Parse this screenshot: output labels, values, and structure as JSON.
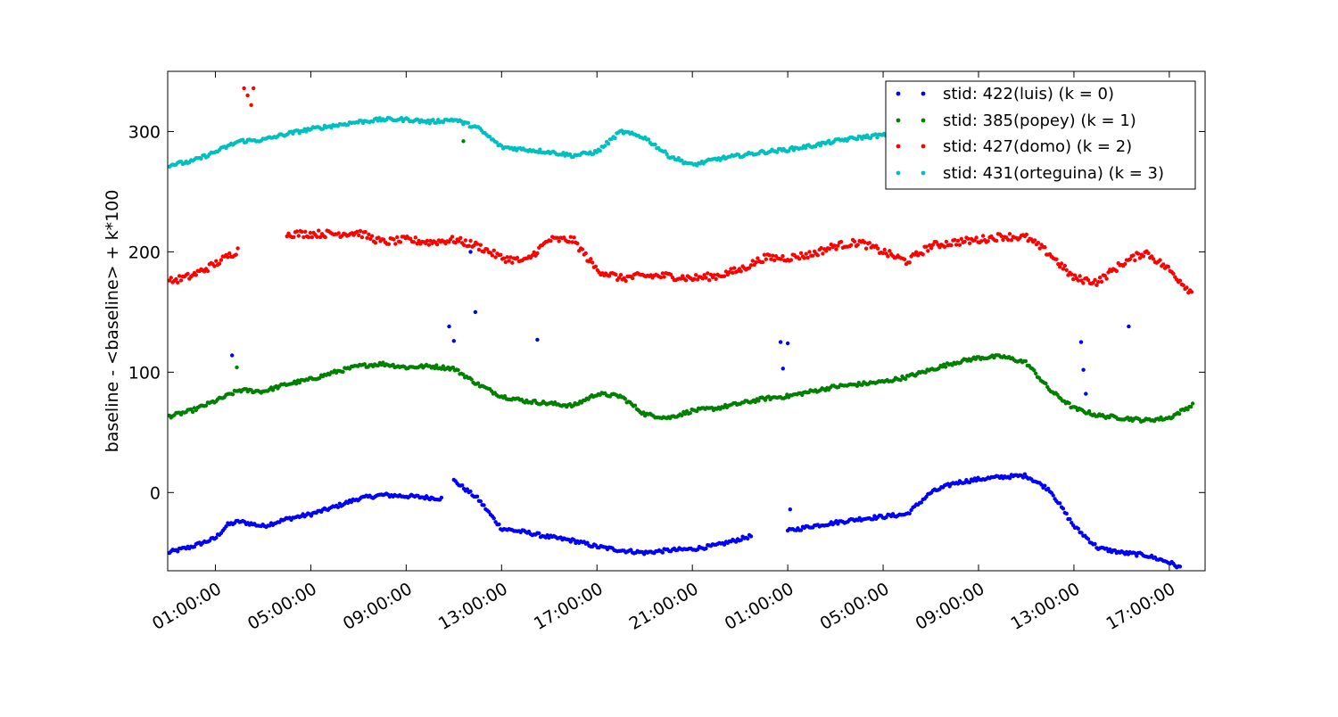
{
  "chart_data": {
    "type": "scatter",
    "title": "",
    "xlabel": "",
    "ylabel": "baseline - <baseline> + k*100",
    "x_type": "time",
    "x_range": [
      "23:00:00",
      "18:30:00 (next day)"
    ],
    "x_tick_labels": [
      "01:00:00",
      "05:00:00",
      "09:00:00",
      "13:00:00",
      "17:00:00",
      "21:00:00",
      "01:00:00",
      "05:00:00",
      "09:00:00",
      "13:00:00",
      "17:00:00"
    ],
    "x_tick_hours": [
      2,
      6,
      10,
      14,
      18,
      22,
      26,
      30,
      34,
      38,
      42
    ],
    "x_hours_origin": "23:00:00",
    "ylim": [
      -65,
      350
    ],
    "y_ticks": [
      0,
      100,
      200,
      300
    ],
    "grid": false,
    "legend_position": "top-right",
    "series": [
      {
        "name": "stid: 422(luis) (k = 0)",
        "color": "#0000ff",
        "segments": [
          {
            "hours": [
              0,
              1,
              2,
              2.5,
              3,
              3.5,
              4,
              5,
              6,
              7,
              8,
              9,
              10,
              11.5
            ],
            "values": [
              -50,
              -45,
              -38,
              -27,
              -24,
              -26,
              -28,
              -22,
              -18,
              -12,
              -5,
              -2,
              -3,
              -5
            ]
          },
          {
            "hours": [
              12,
              13,
              14,
              15,
              16,
              17,
              18,
              19,
              20,
              21,
              22,
              23,
              24.5
            ],
            "values": [
              10,
              -5,
              -30,
              -33,
              -37,
              -40,
              -45,
              -48,
              -50,
              -48,
              -47,
              -44,
              -36
            ]
          },
          {
            "hours": [
              26,
              27,
              28,
              29,
              30,
              31,
              32,
              33,
              34,
              35,
              36,
              37,
              38,
              39,
              40,
              41,
              42,
              42.5
            ],
            "values": [
              -32,
              -28,
              -25,
              -22,
              -20,
              -18,
              0,
              8,
              11,
              13,
              14,
              2,
              -28,
              -46,
              -50,
              -52,
              -58,
              -63
            ]
          }
        ],
        "outliers": [
          {
            "hour": 2.7,
            "value": 114
          },
          {
            "hour": 11.8,
            "value": 138
          },
          {
            "hour": 12.0,
            "value": 126
          },
          {
            "hour": 12.7,
            "value": 200
          },
          {
            "hour": 12.9,
            "value": 150
          },
          {
            "hour": 15.5,
            "value": 127
          },
          {
            "hour": 25.7,
            "value": 125
          },
          {
            "hour": 25.8,
            "value": 103
          },
          {
            "hour": 26.0,
            "value": 124
          },
          {
            "hour": 26.1,
            "value": -14
          },
          {
            "hour": 38.3,
            "value": 125
          },
          {
            "hour": 38.4,
            "value": 102
          },
          {
            "hour": 38.5,
            "value": 82
          },
          {
            "hour": 40.3,
            "value": 138
          }
        ]
      },
      {
        "name": "stid: 385(popey) (k = 1)",
        "color": "#008000",
        "segments": [
          {
            "hours": [
              0,
              1,
              2,
              3,
              4,
              5,
              6,
              7,
              8,
              9,
              10,
              11,
              12,
              13,
              14,
              15,
              16,
              17,
              18,
              19,
              20,
              21,
              22,
              23,
              24,
              25,
              26,
              27,
              28,
              29,
              30,
              31,
              32,
              33,
              34,
              35,
              36,
              37,
              38,
              39,
              40,
              41,
              42,
              43
            ],
            "values": [
              63,
              68,
              76,
              85,
              84,
              90,
              94,
              100,
              105,
              107,
              104,
              105,
              103,
              90,
              80,
              76,
              74,
              72,
              82,
              80,
              65,
              62,
              68,
              70,
              74,
              78,
              80,
              84,
              88,
              90,
              92,
              96,
              102,
              108,
              112,
              113,
              108,
              85,
              70,
              64,
              62,
              60,
              62,
              73
            ]
          }
        ],
        "outliers": [
          {
            "hour": 2.9,
            "value": 104
          },
          {
            "hour": 12.4,
            "value": 292
          }
        ]
      },
      {
        "name": "stid: 427(domo) (k = 2)",
        "color": "#ff0000",
        "segments": [
          {
            "hours": [
              0,
              1,
              2,
              3
            ],
            "values": [
              175,
              180,
              190,
              202
            ]
          },
          {
            "hours": [
              5,
              6,
              7,
              8,
              9,
              10,
              11,
              12,
              13,
              14,
              15,
              16,
              17,
              18,
              19,
              20,
              21,
              22,
              23,
              24,
              25,
              26,
              27,
              28,
              29,
              30,
              31,
              32,
              33,
              34,
              35,
              36,
              37,
              38,
              39,
              40,
              41,
              42,
              43
            ],
            "values": [
              215,
              215,
              215,
              216,
              208,
              210,
              208,
              210,
              205,
              195,
              192,
              210,
              210,
              185,
              178,
              180,
              180,
              178,
              180,
              185,
              195,
              195,
              198,
              205,
              208,
              200,
              192,
              205,
              208,
              210,
              213,
              212,
              198,
              178,
              175,
              190,
              200,
              185,
              165
            ]
          }
        ],
        "outliers": [
          {
            "hour": 3.2,
            "value": 336
          },
          {
            "hour": 3.35,
            "value": 330
          },
          {
            "hour": 3.5,
            "value": 322
          },
          {
            "hour": 3.6,
            "value": 336
          }
        ]
      },
      {
        "name": "stid: 431(orteguina) (k = 3)",
        "color": "#00bfbf",
        "segments": [
          {
            "hours": [
              0,
              1,
              2,
              3,
              4,
              5,
              6,
              7,
              8,
              9,
              10,
              11,
              12,
              13,
              14,
              15,
              16,
              17,
              18,
              19,
              20,
              21,
              22,
              23,
              24,
              25,
              26,
              27,
              28,
              29,
              30,
              31
            ],
            "values": [
              272,
              275,
              283,
              292,
              293,
              298,
              302,
              305,
              308,
              310,
              310,
              308,
              310,
              303,
              287,
              285,
              283,
              280,
              283,
              300,
              295,
              280,
              272,
              277,
              280,
              283,
              285,
              288,
              292,
              295,
              297,
              296
            ]
          },
          {
            "hours": [
              42.6,
              43
            ],
            "values": [
              262,
              270
            ]
          }
        ],
        "outliers": []
      }
    ]
  }
}
